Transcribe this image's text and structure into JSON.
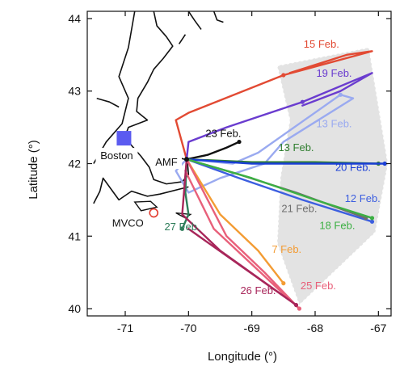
{
  "chart_data": {
    "type": "map",
    "xlabel": "Longitude (°)",
    "ylabel": "Latitude (°)",
    "xlim": [
      -71.6,
      -66.8
    ],
    "ylim": [
      39.9,
      44.1
    ],
    "x_ticks": [
      -71,
      -70,
      -69,
      -68,
      -67
    ],
    "y_ticks": [
      40,
      41,
      42,
      43,
      44
    ],
    "x_tick_labels": [
      "-71",
      "-70",
      "-69",
      "-68",
      "-67"
    ],
    "y_tick_labels": [
      "40",
      "41",
      "42",
      "43",
      "44"
    ],
    "sector_color": "#e3e3e3",
    "places": [
      {
        "name": "Boston",
        "lon": -71.02,
        "lat": 42.35,
        "marker": "square",
        "color": "#5b5bf0"
      },
      {
        "name": "AMF",
        "lon": -70.03,
        "lat": 42.06,
        "marker": "point",
        "color": "#111111"
      },
      {
        "name": "MVCO",
        "lon": -70.55,
        "lat": 41.32,
        "marker": "circle",
        "color": "#e23b2e"
      }
    ],
    "flights": [
      {
        "name": "15 Feb.",
        "color": "#e24a33",
        "label_at": [
          -67.9,
          43.6
        ],
        "path": [
          [
            -70.03,
            42.06
          ],
          [
            -70.2,
            42.6
          ],
          [
            -70.0,
            42.7
          ],
          [
            -68.5,
            43.22
          ],
          [
            -67.1,
            43.55
          ],
          [
            -67.5,
            43.5
          ],
          [
            -68.4,
            43.25
          ]
        ]
      },
      {
        "name": "19 Feb.",
        "color": "#6a3ccf",
        "label_at": [
          -67.7,
          43.2
        ],
        "path": [
          [
            -70.03,
            42.06
          ],
          [
            -70.0,
            42.3
          ],
          [
            -69.4,
            42.5
          ],
          [
            -68.2,
            42.85
          ],
          [
            -67.1,
            43.25
          ],
          [
            -67.6,
            43.0
          ],
          [
            -68.2,
            42.8
          ]
        ]
      },
      {
        "name": "13 Feb.",
        "color": "#9aaaf0",
        "label_at": [
          -67.7,
          42.5
        ],
        "path": [
          [
            -70.03,
            42.06
          ],
          [
            -69.3,
            42.0
          ],
          [
            -68.9,
            42.15
          ],
          [
            -67.6,
            42.95
          ],
          [
            -67.4,
            42.9
          ],
          [
            -68.5,
            42.3
          ],
          [
            -68.8,
            42.0
          ],
          [
            -69.5,
            41.8
          ],
          [
            -70.0,
            41.6
          ],
          [
            -70.2,
            41.9
          ],
          [
            -70.03,
            42.06
          ]
        ]
      },
      {
        "name": "23 Feb.",
        "color": "#111111",
        "label_at": [
          -69.45,
          42.37
        ],
        "path": [
          [
            -70.03,
            42.06
          ],
          [
            -69.7,
            42.12
          ],
          [
            -69.4,
            42.22
          ],
          [
            -69.2,
            42.3
          ]
        ]
      },
      {
        "name": "13 Feb.",
        "color": "#2e7d2e",
        "label_at": [
          -68.3,
          42.17
        ],
        "path": [
          [
            -70.03,
            42.06
          ],
          [
            -69.0,
            42.02
          ],
          [
            -68.0,
            42.02
          ],
          [
            -67.0,
            42.0
          ]
        ]
      },
      {
        "name": "20 Feb.",
        "color": "#1a3fd6",
        "label_at": [
          -67.4,
          41.9
        ],
        "path": [
          [
            -70.03,
            42.06
          ],
          [
            -69.0,
            42.0
          ],
          [
            -68.0,
            42.0
          ],
          [
            -66.9,
            42.0
          ]
        ]
      },
      {
        "name": "12 Feb.",
        "color": "#3c5ee0",
        "label_at": [
          -67.25,
          41.47
        ],
        "path": [
          [
            -70.03,
            42.06
          ],
          [
            -69.2,
            41.8
          ],
          [
            -68.2,
            41.5
          ],
          [
            -67.1,
            41.2
          ]
        ]
      },
      {
        "name": "21 Feb.",
        "color": "#6e6e6e",
        "label_at": [
          -68.25,
          41.33
        ],
        "path": [
          [
            -70.03,
            42.06
          ],
          [
            -69.2,
            41.85
          ],
          [
            -68.3,
            41.6
          ],
          [
            -67.2,
            41.25
          ]
        ]
      },
      {
        "name": "18 Feb.",
        "color": "#3cb043",
        "label_at": [
          -67.65,
          41.1
        ],
        "path": [
          [
            -70.03,
            42.06
          ],
          [
            -69.0,
            41.8
          ],
          [
            -68.0,
            41.5
          ],
          [
            -67.1,
            41.25
          ]
        ]
      },
      {
        "name": "27 Feb.",
        "color": "#2e7d5a",
        "label_at": [
          -70.1,
          41.08
        ],
        "path": [
          [
            -70.03,
            42.06
          ],
          [
            -70.05,
            41.6
          ],
          [
            -70.0,
            41.3
          ],
          [
            -70.1,
            41.1
          ]
        ]
      },
      {
        "name": "7 Feb.",
        "color": "#f39c34",
        "label_at": [
          -68.45,
          40.77
        ],
        "path": [
          [
            -70.03,
            42.06
          ],
          [
            -69.5,
            41.3
          ],
          [
            -68.9,
            40.8
          ],
          [
            -68.5,
            40.35
          ]
        ]
      },
      {
        "name": "25 Feb.",
        "color": "#e8607a",
        "label_at": [
          -67.95,
          40.27
        ],
        "path": [
          [
            -70.03,
            42.06
          ],
          [
            -69.4,
            41.0
          ],
          [
            -68.8,
            40.5
          ],
          [
            -68.25,
            40.0
          ],
          [
            -69.6,
            41.1
          ],
          [
            -70.05,
            41.9
          ]
        ]
      },
      {
        "name": "26 Feb.",
        "color": "#a8265a",
        "label_at": [
          -68.9,
          40.2
        ],
        "path": [
          [
            -70.03,
            42.06
          ],
          [
            -70.1,
            41.3
          ],
          [
            -69.5,
            40.8
          ],
          [
            -68.3,
            40.05
          ],
          [
            -70.0,
            41.1
          ]
        ]
      }
    ]
  }
}
